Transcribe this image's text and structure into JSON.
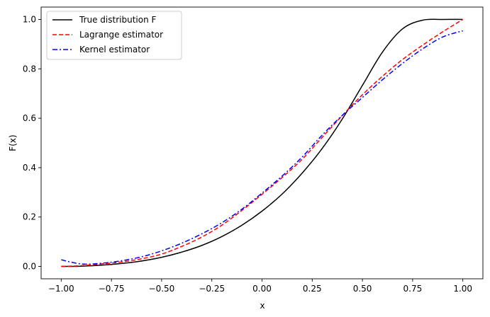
{
  "chart_data": {
    "type": "line",
    "xlabel": "x",
    "ylabel": "F(x)",
    "xlim": [
      -1.1,
      1.1
    ],
    "ylim": [
      -0.05,
      1.05
    ],
    "xticks": [
      -1.0,
      -0.75,
      -0.5,
      -0.25,
      0.0,
      0.25,
      0.5,
      0.75,
      1.0
    ],
    "xtick_labels": [
      "−1.00",
      "−0.75",
      "−0.50",
      "−0.25",
      "0.00",
      "0.25",
      "0.50",
      "0.75",
      "1.00"
    ],
    "yticks": [
      0.0,
      0.2,
      0.4,
      0.6,
      0.8,
      1.0
    ],
    "ytick_labels": [
      "0.0",
      "0.2",
      "0.4",
      "0.6",
      "0.8",
      "1.0"
    ],
    "grid": false,
    "legend_position": "top-left",
    "x": [
      -1.0,
      -0.9,
      -0.8,
      -0.7,
      -0.6,
      -0.5,
      -0.4,
      -0.3,
      -0.2,
      -0.1,
      0.0,
      0.1,
      0.2,
      0.3,
      0.4,
      0.5,
      0.6,
      0.7,
      0.8,
      0.9,
      1.0
    ],
    "series": [
      {
        "name": "True distribution F",
        "color": "#000000",
        "linestyle": "solid",
        "values": [
          0.0,
          0.001,
          0.005,
          0.012,
          0.022,
          0.037,
          0.058,
          0.085,
          0.121,
          0.167,
          0.224,
          0.293,
          0.378,
          0.478,
          0.597,
          0.733,
          0.868,
          0.962,
          0.997,
          1.0,
          1.0
        ]
      },
      {
        "name": "Lagrange estimator",
        "color": "#ff0000",
        "linestyle": "dashed",
        "values": [
          0.0,
          0.003,
          0.01,
          0.018,
          0.031,
          0.05,
          0.081,
          0.119,
          0.167,
          0.227,
          0.292,
          0.36,
          0.434,
          0.523,
          0.611,
          0.695,
          0.77,
          0.838,
          0.896,
          0.95,
          1.0
        ]
      },
      {
        "name": "Kernel estimator",
        "color": "#0000ff",
        "linestyle": "dashdot",
        "values": [
          0.027,
          0.01,
          0.013,
          0.023,
          0.039,
          0.063,
          0.094,
          0.132,
          0.177,
          0.232,
          0.297,
          0.366,
          0.443,
          0.532,
          0.612,
          0.684,
          0.756,
          0.822,
          0.881,
          0.929,
          0.954
        ]
      }
    ]
  }
}
